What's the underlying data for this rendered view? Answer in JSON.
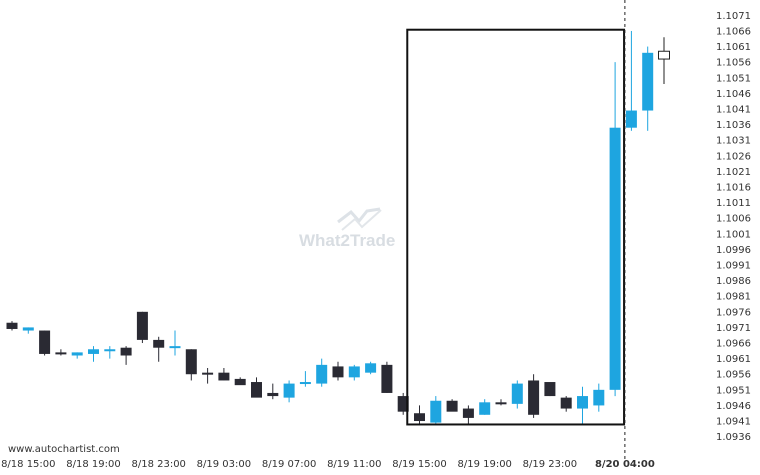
{
  "chart_data": {
    "type": "candlestick",
    "y_ticks": [
      "1.1071",
      "1.1066",
      "1.1061",
      "1.1056",
      "1.1051",
      "1.1046",
      "1.1041",
      "1.1036",
      "1.1031",
      "1.1026",
      "1.1021",
      "1.1016",
      "1.1011",
      "1.1006",
      "1.1001",
      "1.0996",
      "1.0991",
      "1.0986",
      "1.0981",
      "1.0976",
      "1.0971",
      "1.0966",
      "1.0961",
      "1.0956",
      "1.0951",
      "1.0946",
      "1.0941",
      "1.0936"
    ],
    "ylim": [
      1.0933,
      1.1074
    ],
    "x_labels": [
      {
        "text": "8/18 15:00",
        "bar": 1
      },
      {
        "text": "8/18 19:00",
        "bar": 5
      },
      {
        "text": "8/18 23:00",
        "bar": 9
      },
      {
        "text": "8/19 03:00",
        "bar": 13
      },
      {
        "text": "8/19 07:00",
        "bar": 17
      },
      {
        "text": "8/19 11:00",
        "bar": 21
      },
      {
        "text": "8/19 15:00",
        "bar": 25
      },
      {
        "text": "8/19 19:00",
        "bar": 29
      },
      {
        "text": "8/19 23:00",
        "bar": 33
      },
      {
        "text": "8/20 04:00",
        "bar": 37.6,
        "bold": true
      }
    ],
    "candles": [
      {
        "o": 1.09725,
        "h": 1.0973,
        "l": 1.097,
        "c": 1.09705
      },
      {
        "o": 1.097,
        "h": 1.0971,
        "l": 1.0969,
        "c": 1.0971
      },
      {
        "o": 1.097,
        "h": 1.097,
        "l": 1.0962,
        "c": 1.09625
      },
      {
        "o": 1.0963,
        "h": 1.0964,
        "l": 1.0962,
        "c": 1.09625
      },
      {
        "o": 1.0962,
        "h": 1.0963,
        "l": 1.0961,
        "c": 1.0963
      },
      {
        "o": 1.09625,
        "h": 1.0965,
        "l": 1.096,
        "c": 1.0964
      },
      {
        "o": 1.09635,
        "h": 1.0965,
        "l": 1.0961,
        "c": 1.0964
      },
      {
        "o": 1.09645,
        "h": 1.0965,
        "l": 1.0959,
        "c": 1.0962
      },
      {
        "o": 1.0976,
        "h": 1.0976,
        "l": 1.0966,
        "c": 1.0967
      },
      {
        "o": 1.0967,
        "h": 1.0968,
        "l": 1.096,
        "c": 1.09645
      },
      {
        "o": 1.09645,
        "h": 1.097,
        "l": 1.0962,
        "c": 1.0965
      },
      {
        "o": 1.0964,
        "h": 1.0964,
        "l": 1.0954,
        "c": 1.0956
      },
      {
        "o": 1.09565,
        "h": 1.0958,
        "l": 1.0953,
        "c": 1.0956
      },
      {
        "o": 1.09565,
        "h": 1.0958,
        "l": 1.0954,
        "c": 1.0954
      },
      {
        "o": 1.09545,
        "h": 1.0955,
        "l": 1.0953,
        "c": 1.09525
      },
      {
        "o": 1.09535,
        "h": 1.0955,
        "l": 1.0949,
        "c": 1.09485
      },
      {
        "o": 1.095,
        "h": 1.0953,
        "l": 1.0948,
        "c": 1.0949
      },
      {
        "o": 1.09485,
        "h": 1.0954,
        "l": 1.0947,
        "c": 1.0953
      },
      {
        "o": 1.0953,
        "h": 1.0957,
        "l": 1.0952,
        "c": 1.09535
      },
      {
        "o": 1.0953,
        "h": 1.0961,
        "l": 1.0952,
        "c": 1.0959
      },
      {
        "o": 1.09585,
        "h": 1.096,
        "l": 1.0954,
        "c": 1.0955
      },
      {
        "o": 1.0955,
        "h": 1.0959,
        "l": 1.0954,
        "c": 1.09585
      },
      {
        "o": 1.09565,
        "h": 1.096,
        "l": 1.0956,
        "c": 1.09595
      },
      {
        "o": 1.0959,
        "h": 1.096,
        "l": 1.095,
        "c": 1.095
      },
      {
        "o": 1.0949,
        "h": 1.095,
        "l": 1.0943,
        "c": 1.0944
      },
      {
        "o": 1.09435,
        "h": 1.0946,
        "l": 1.094,
        "c": 1.0941
      },
      {
        "o": 1.09405,
        "h": 1.0949,
        "l": 1.094,
        "c": 1.09475
      },
      {
        "o": 1.09475,
        "h": 1.0948,
        "l": 1.0945,
        "c": 1.0944
      },
      {
        "o": 1.0945,
        "h": 1.0946,
        "l": 1.094,
        "c": 1.0942
      },
      {
        "o": 1.0943,
        "h": 1.0948,
        "l": 1.0943,
        "c": 1.0947
      },
      {
        "o": 1.0947,
        "h": 1.0948,
        "l": 1.0946,
        "c": 1.09465
      },
      {
        "o": 1.09465,
        "h": 1.0954,
        "l": 1.0945,
        "c": 1.0953
      },
      {
        "o": 1.0954,
        "h": 1.0956,
        "l": 1.0942,
        "c": 1.0943
      },
      {
        "o": 1.09535,
        "h": 1.0953,
        "l": 1.0949,
        "c": 1.0949
      },
      {
        "o": 1.09485,
        "h": 1.0949,
        "l": 1.0944,
        "c": 1.0945
      },
      {
        "o": 1.0945,
        "h": 1.0952,
        "l": 1.094,
        "c": 1.0949
      },
      {
        "o": 1.0946,
        "h": 1.0953,
        "l": 1.0944,
        "c": 1.0951
      },
      {
        "o": 1.0951,
        "h": 1.1056,
        "l": 1.0949,
        "c": 1.1035
      },
      {
        "o": 1.1035,
        "h": 1.1066,
        "l": 1.1034,
        "c": 1.10405
      },
      {
        "o": 1.10405,
        "h": 1.1061,
        "l": 1.1034,
        "c": 1.1059
      },
      {
        "o": 1.1057,
        "h": 1.1064,
        "l": 1.1049,
        "c": 1.10595
      }
    ],
    "up_color": "#1ea5e0",
    "down_color": "#2a2a33",
    "live_candle_color": "#ffffff",
    "highlight_box": {
      "from_bar": 24.25,
      "to_bar": 37.55,
      "y_low": 1.09399,
      "y_high": 1.10664
    },
    "current_time_bar": 37.6
  },
  "watermark": {
    "text": "What2Trade"
  },
  "credit": "www.autochartist.com"
}
